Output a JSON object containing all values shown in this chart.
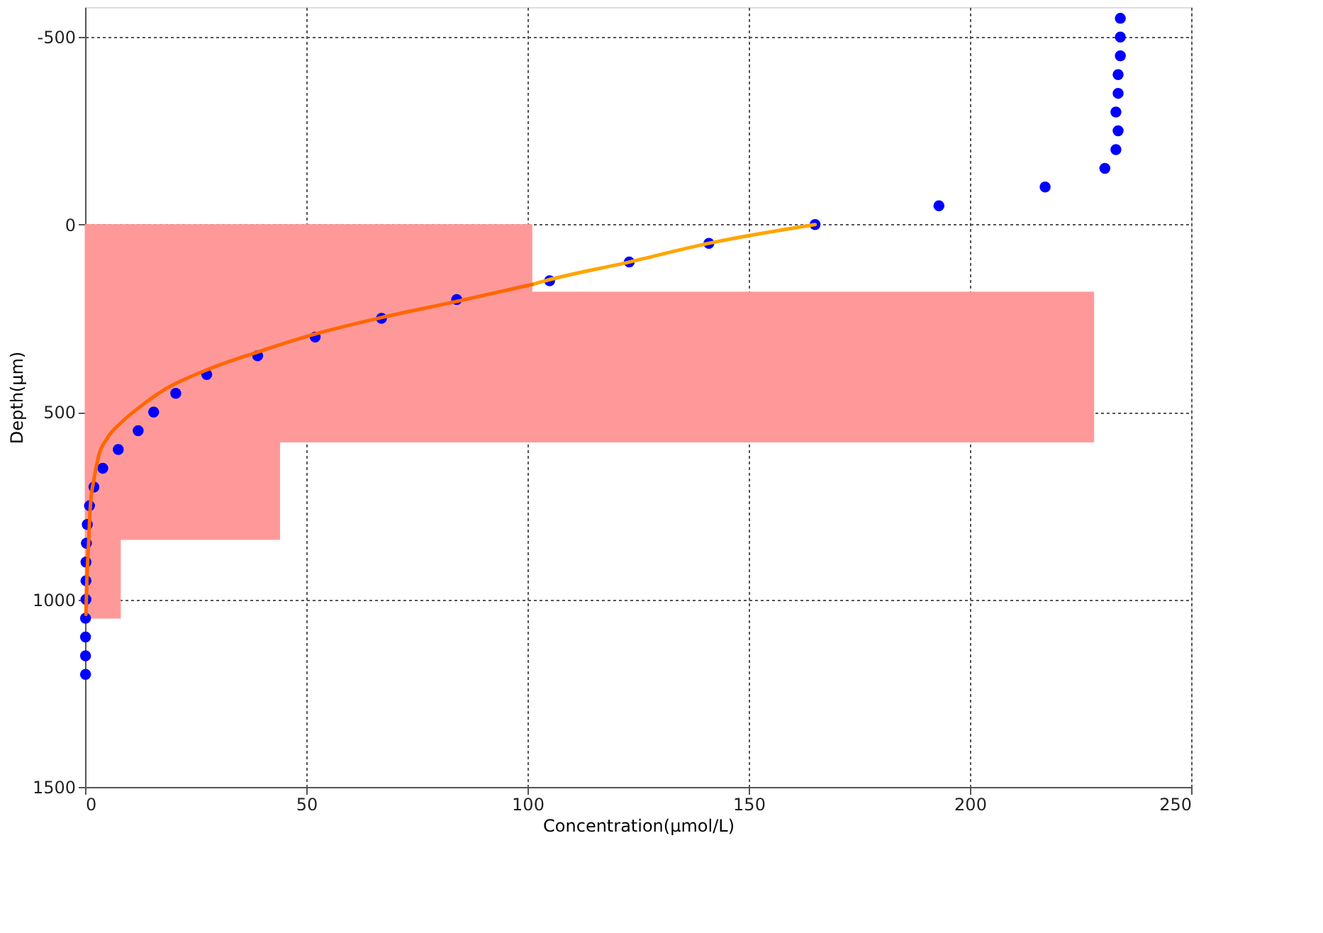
{
  "chart_data": {
    "type": "scatter",
    "xlabel": "Concentration(μmol/L)",
    "ylabel": "Depth(μm)",
    "xlim": [
      0,
      250
    ],
    "xticks": [
      0,
      50,
      100,
      150,
      200,
      250
    ],
    "ylim": [
      1500,
      -580
    ],
    "yticks": [
      -500,
      0,
      500,
      1000,
      1500
    ],
    "grid": true,
    "series": [
      {
        "type": "area",
        "color": "#ff9999",
        "x": [
          0,
          101,
          101,
          228,
          228,
          44,
          44,
          8,
          8,
          0
        ],
        "values": [
          0,
          0,
          180,
          180,
          580,
          580,
          840,
          840,
          1050,
          1050
        ]
      },
      {
        "marker": "circle",
        "color": "#0000ff",
        "x": [
          234,
          234,
          234,
          233.5,
          233.5,
          233,
          233.5,
          233,
          230.5,
          217,
          193,
          165,
          141,
          123,
          105,
          84,
          67,
          52,
          39,
          27.5,
          20.5,
          15.5,
          12,
          7.5,
          4,
          2,
          1,
          0.5,
          0.3,
          0.2,
          0.2,
          0.2,
          0.1,
          0.1,
          0.1,
          0.1
        ],
        "values": [
          -550,
          -500,
          -450,
          -400,
          -350,
          -300,
          -250,
          -200,
          -150,
          -100,
          -50,
          0,
          50,
          100,
          150,
          200,
          250,
          300,
          350,
          400,
          450,
          500,
          550,
          600,
          650,
          700,
          750,
          800,
          850,
          900,
          950,
          1000,
          1050,
          1100,
          1150,
          1200
        ]
      },
      {
        "type": "line",
        "marker": "none",
        "line_style": "solid",
        "color": "#ffa500",
        "x": [
          165,
          141,
          123,
          104,
          101
        ],
        "values": [
          0,
          50,
          100,
          150,
          160
        ]
      },
      {
        "type": "line",
        "marker": "none",
        "line_style": "solid",
        "color": "#ff6600",
        "x": [
          101,
          84,
          67,
          52,
          39,
          27,
          18,
          12,
          8,
          5,
          3,
          2,
          1.2,
          0.8,
          0.4,
          0.2
        ],
        "values": [
          160,
          205,
          248,
          292,
          340,
          390,
          440,
          490,
          530,
          570,
          620,
          680,
          750,
          850,
          950,
          1040
        ]
      }
    ]
  }
}
